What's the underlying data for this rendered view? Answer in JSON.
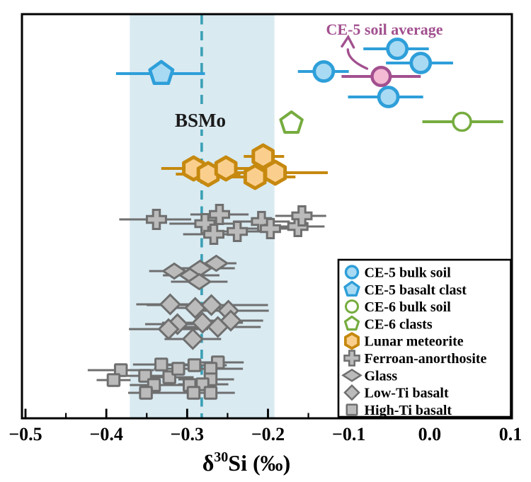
{
  "figure": {
    "background": "#FFFFFF",
    "frame_color": "#000000"
  },
  "chart_data": {
    "type": "scatter",
    "xlabel_parts": {
      "delta": "δ",
      "superscript": "30",
      "rest": "Si (‰)"
    },
    "xlim": [
      -0.5044,
      0.1018
    ],
    "x_axis": {
      "major_ticks": [
        -0.5,
        -0.4,
        -0.3,
        -0.2,
        -0.1,
        0.0,
        0.1
      ],
      "major_tick_labels": [
        "−0.5",
        "−0.4",
        "−0.3",
        "−0.2",
        "−0.1",
        "0.0",
        "0.1"
      ],
      "minor_ticks": [
        -0.45,
        -0.35,
        -0.25,
        -0.15,
        -0.05,
        0.05
      ]
    },
    "band": {
      "x_start": -0.371,
      "x_end": -0.192,
      "color": "#D9EAF1"
    },
    "reference_line": {
      "x": -0.282,
      "label": "BSMo",
      "line_color": "#3AA0B5",
      "label_color": "#1A1A1A"
    },
    "annotation": {
      "text": "CE-5 soil average",
      "color": "#A2508F"
    },
    "legend": {
      "position": "lower right",
      "background": "#FFFFFF",
      "border_color": "#000000"
    },
    "series": [
      {
        "name": "CE-5 bulk soil",
        "marker": "circle",
        "fill": "#A9DAF3",
        "stroke": "#2E9FD9",
        "bar_color": "#2E9FD9",
        "points": [
          {
            "x": -0.04,
            "lo": -0.082,
            "hi": -0.001,
            "row": 69
          },
          {
            "x": -0.011,
            "lo": -0.054,
            "hi": 0.029,
            "row": 89
          },
          {
            "x": -0.131,
            "lo": -0.163,
            "hi": -0.1,
            "row": 101
          },
          {
            "x": -0.051,
            "lo": -0.101,
            "hi": -0.008,
            "row": 137
          }
        ]
      },
      {
        "name": "CE-5 basalt clast",
        "marker": "pentagon",
        "fill": "#A9DAF3",
        "stroke": "#2E9FD9",
        "bar_color": "#2E9FD9",
        "points": [
          {
            "x": -0.332,
            "lo": -0.388,
            "hi": -0.278,
            "row": 104
          }
        ]
      },
      {
        "name": "CE-6 bulk soil",
        "marker": "circle-open",
        "fill": "#FFFFFF",
        "stroke": "#76AC3F",
        "bar_color": "#76AC3F",
        "points": [
          {
            "x": 0.04,
            "lo": -0.009,
            "hi": 0.091,
            "row": 172
          }
        ]
      },
      {
        "name": "CE-6 clasts",
        "marker": "pentagon-open",
        "fill": "#FFFFFF",
        "stroke": "#76AC3F",
        "bar_color": "#76AC3F",
        "points": [
          {
            "x": -0.171,
            "lo": null,
            "hi": null,
            "row": 174
          }
        ]
      },
      {
        "name": "Lunar meteorite",
        "marker": "hexagon",
        "fill": "#FACF8E",
        "stroke": "#C6890F",
        "bar_color": "#C6890F",
        "points": [
          {
            "x": -0.292,
            "lo": -0.332,
            "hi": -0.252,
            "row": 238
          },
          {
            "x": -0.274,
            "lo": -0.314,
            "hi": -0.234,
            "row": 246
          },
          {
            "x": -0.252,
            "lo": -0.292,
            "hi": -0.212,
            "row": 238
          },
          {
            "x": -0.206,
            "lo": -0.23,
            "hi": -0.18,
            "row": 221
          },
          {
            "x": -0.216,
            "lo": -0.266,
            "hi": -0.166,
            "row": 250
          },
          {
            "x": -0.191,
            "lo": -0.256,
            "hi": -0.126,
            "row": 244
          }
        ]
      },
      {
        "name": "Ferroan-anorthosite",
        "marker": "plus",
        "fill": "#BBBBBB",
        "stroke": "#6F6F6F",
        "bar_color": "#6F6F6F",
        "points": [
          {
            "x": -0.338,
            "lo": -0.384,
            "hi": -0.295,
            "row": 310
          },
          {
            "x": -0.278,
            "lo": -0.322,
            "hi": -0.234,
            "row": 316
          },
          {
            "x": -0.26,
            "lo": -0.296,
            "hi": -0.224,
            "row": 303
          },
          {
            "x": -0.267,
            "lo": -0.305,
            "hi": -0.229,
            "row": 331
          },
          {
            "x": -0.238,
            "lo": -0.276,
            "hi": -0.2,
            "row": 327
          },
          {
            "x": -0.208,
            "lo": -0.243,
            "hi": -0.173,
            "row": 313
          },
          {
            "x": -0.197,
            "lo": -0.232,
            "hi": -0.162,
            "row": 323
          },
          {
            "x": -0.163,
            "lo": -0.187,
            "hi": -0.13,
            "row": 320
          },
          {
            "x": -0.158,
            "lo": -0.191,
            "hi": -0.128,
            "row": 305
          }
        ]
      },
      {
        "name": "Glass",
        "marker": "thin-diamond",
        "fill": "#BBBBBB",
        "stroke": "#6F6F6F",
        "bar_color": "#6F6F6F",
        "points": [
          {
            "x": -0.316,
            "lo": -0.347,
            "hi": -0.285,
            "row": 383
          },
          {
            "x": -0.295,
            "lo": -0.33,
            "hi": -0.26,
            "row": 389
          },
          {
            "x": -0.284,
            "lo": -0.324,
            "hi": -0.241,
            "row": 379
          },
          {
            "x": -0.264,
            "lo": -0.288,
            "hi": -0.239,
            "row": 372
          },
          {
            "x": -0.285,
            "lo": -0.32,
            "hi": -0.25,
            "row": 398
          }
        ]
      },
      {
        "name": "Low-Ti basalt",
        "marker": "diamond",
        "fill": "#BBBBBB",
        "stroke": "#6F6F6F",
        "bar_color": "#6F6F6F",
        "points": [
          {
            "x": -0.321,
            "lo": -0.363,
            "hi": -0.279,
            "row": 430
          },
          {
            "x": -0.29,
            "lo": -0.328,
            "hi": -0.252,
            "row": 435
          },
          {
            "x": -0.27,
            "lo": -0.35,
            "hi": -0.2,
            "row": 431
          },
          {
            "x": -0.249,
            "lo": -0.294,
            "hi": -0.199,
            "row": 439
          },
          {
            "x": -0.312,
            "lo": -0.352,
            "hi": -0.272,
            "row": 458
          },
          {
            "x": -0.281,
            "lo": -0.331,
            "hi": -0.231,
            "row": 456
          },
          {
            "x": -0.262,
            "lo": -0.322,
            "hi": -0.209,
            "row": 462
          },
          {
            "x": -0.323,
            "lo": -0.372,
            "hi": -0.274,
            "row": 465
          },
          {
            "x": -0.293,
            "lo": -0.328,
            "hi": -0.258,
            "row": 479
          },
          {
            "x": -0.246,
            "lo": -0.286,
            "hi": -0.206,
            "row": 453
          }
        ]
      },
      {
        "name": "High-Ti basalt",
        "marker": "square",
        "fill": "#BBBBBB",
        "stroke": "#6F6F6F",
        "bar_color": "#6F6F6F",
        "points": [
          {
            "x": -0.382,
            "lo": -0.423,
            "hi": -0.341,
            "row": 523
          },
          {
            "x": -0.391,
            "lo": -0.412,
            "hi": -0.37,
            "row": 537
          },
          {
            "x": -0.352,
            "lo": -0.382,
            "hi": -0.322,
            "row": 531
          },
          {
            "x": -0.332,
            "lo": -0.367,
            "hi": -0.297,
            "row": 515
          },
          {
            "x": -0.341,
            "lo": -0.371,
            "hi": -0.311,
            "row": 544
          },
          {
            "x": -0.322,
            "lo": -0.352,
            "hi": -0.292,
            "row": 533
          },
          {
            "x": -0.311,
            "lo": -0.341,
            "hi": -0.281,
            "row": 521
          },
          {
            "x": -0.351,
            "lo": -0.373,
            "hi": -0.3,
            "row": 555
          },
          {
            "x": -0.291,
            "lo": -0.331,
            "hi": -0.251,
            "row": 516
          },
          {
            "x": -0.262,
            "lo": -0.294,
            "hi": -0.23,
            "row": 512
          },
          {
            "x": -0.271,
            "lo": -0.311,
            "hi": -0.231,
            "row": 521
          },
          {
            "x": -0.271,
            "lo": -0.311,
            "hi": -0.242,
            "row": 536
          },
          {
            "x": -0.297,
            "lo": -0.327,
            "hi": -0.267,
            "row": 544
          },
          {
            "x": -0.281,
            "lo": -0.311,
            "hi": -0.249,
            "row": 543
          },
          {
            "x": -0.292,
            "lo": -0.322,
            "hi": -0.262,
            "row": 555
          },
          {
            "x": -0.271,
            "lo": -0.301,
            "hi": -0.241,
            "row": 555
          }
        ]
      },
      {
        "name": "CE-5 soil average",
        "marker": "circle",
        "in_legend": false,
        "fill": "#F4B9D3",
        "stroke": "#A2508F",
        "bar_color": "#A2508F",
        "points": [
          {
            "x": -0.06,
            "lo": -0.109,
            "hi": -0.011,
            "row": 108
          }
        ]
      }
    ]
  }
}
